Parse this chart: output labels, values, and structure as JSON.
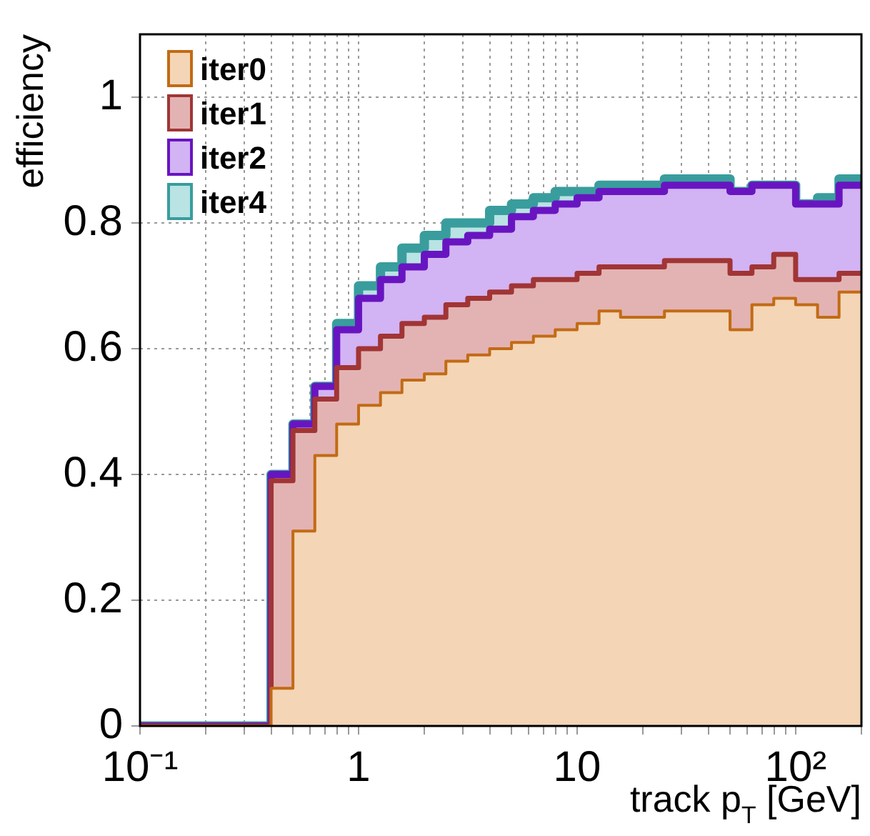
{
  "chart_data": {
    "type": "histogram",
    "xlabel": "track p$_{T}$ [GeV]",
    "ylabel": "efficiency",
    "bins": [
      0.1,
      0.126,
      0.158,
      0.2,
      0.251,
      0.316,
      0.398,
      0.501,
      0.631,
      0.794,
      1,
      1.26,
      1.58,
      2,
      2.51,
      3.16,
      3.98,
      5.01,
      6.31,
      7.94,
      10,
      12.6,
      15.8,
      20,
      25.1,
      31.6,
      39.8,
      50.1,
      63.1,
      79.4,
      100,
      126,
      158,
      200
    ],
    "series": [
      {
        "name": "iter0",
        "color": "#f4d5b6",
        "values": [
          0,
          0,
          0,
          0,
          0,
          0,
          0.06,
          0.31,
          0.43,
          0.48,
          0.51,
          0.53,
          0.55,
          0.56,
          0.58,
          0.59,
          0.6,
          0.61,
          0.62,
          0.63,
          0.64,
          0.66,
          0.65,
          0.65,
          0.66,
          0.66,
          0.66,
          0.63,
          0.67,
          0.68,
          0.67,
          0.65,
          0.69
        ]
      },
      {
        "name": "iter1",
        "color": "#e3b3b3",
        "values": [
          0,
          0,
          0,
          0,
          0,
          0,
          0.39,
          0.47,
          0.52,
          0.57,
          0.6,
          0.62,
          0.64,
          0.65,
          0.67,
          0.68,
          0.69,
          0.7,
          0.71,
          0.71,
          0.72,
          0.73,
          0.73,
          0.73,
          0.74,
          0.74,
          0.74,
          0.72,
          0.73,
          0.75,
          0.71,
          0.71,
          0.72
        ]
      },
      {
        "name": "iter2",
        "color": "#d2b3f3",
        "values": [
          0,
          0,
          0,
          0,
          0,
          0,
          0.4,
          0.48,
          0.54,
          0.63,
          0.68,
          0.71,
          0.73,
          0.75,
          0.77,
          0.78,
          0.79,
          0.81,
          0.82,
          0.83,
          0.84,
          0.85,
          0.85,
          0.85,
          0.86,
          0.86,
          0.86,
          0.85,
          0.86,
          0.86,
          0.83,
          0.83,
          0.86
        ]
      },
      {
        "name": "iter4",
        "color": "#bae3e3",
        "values": [
          0,
          0,
          0,
          0,
          0,
          0,
          0.4,
          0.48,
          0.54,
          0.64,
          0.7,
          0.73,
          0.76,
          0.78,
          0.8,
          0.8,
          0.82,
          0.83,
          0.84,
          0.85,
          0.85,
          0.86,
          0.86,
          0.86,
          0.87,
          0.87,
          0.87,
          0.85,
          0.86,
          0.86,
          0.83,
          0.84,
          0.87
        ]
      }
    ],
    "log": "x",
    "xlim": [
      0.1,
      200
    ],
    "xticks": [
      {
        "value": 0.1,
        "label": "10⁻¹"
      },
      {
        "value": 0.2,
        "label": null
      },
      {
        "value": 0.3,
        "label": null
      },
      {
        "value": 0.4,
        "label": null
      },
      {
        "value": 0.5,
        "label": null
      },
      {
        "value": 0.6,
        "label": null
      },
      {
        "value": 0.7,
        "label": null
      },
      {
        "value": 0.8,
        "label": null
      },
      {
        "value": 0.9,
        "label": null
      },
      1,
      {
        "value": 2,
        "label": null
      },
      {
        "value": 3,
        "label": null
      },
      {
        "value": 4,
        "label": null
      },
      {
        "value": 5,
        "label": null
      },
      {
        "value": 6,
        "label": null
      },
      {
        "value": 7,
        "label": null
      },
      {
        "value": 8,
        "label": null
      },
      {
        "value": 9,
        "label": null
      },
      10,
      {
        "value": 20,
        "label": null
      },
      {
        "value": 30,
        "label": null
      },
      {
        "value": 40,
        "label": null
      },
      {
        "value": 50,
        "label": null
      },
      {
        "value": 60,
        "label": null
      },
      {
        "value": 70,
        "label": null
      },
      {
        "value": 80,
        "label": null
      },
      {
        "value": 90,
        "label": null
      },
      {
        "value": 100,
        "label": "10²"
      },
      {
        "value": 200,
        "label": null
      }
    ],
    "ylim": [
      0,
      1.1
    ],
    "yticks": [
      0,
      0.2,
      0.4,
      0.6,
      0.8,
      1
    ],
    "grid": true,
    "legend": "top left"
  }
}
